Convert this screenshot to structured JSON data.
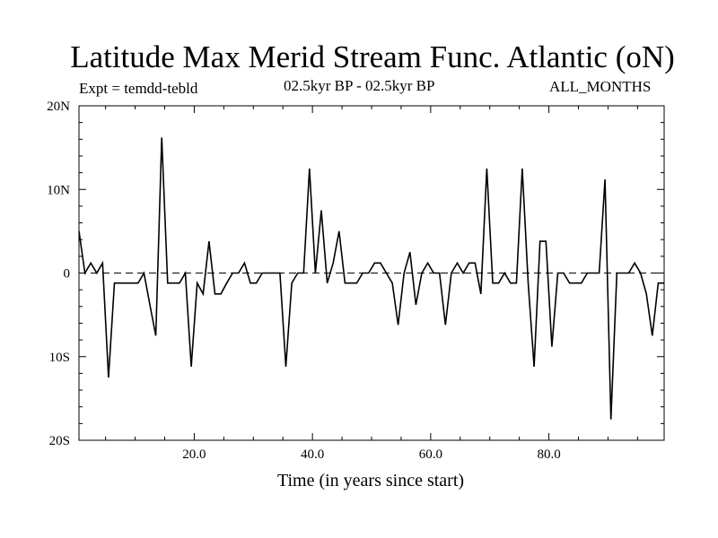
{
  "header": {
    "title": "Latitude Max Merid Stream Func. Atlantic (oN)",
    "left": "Expt = temdd-tebld",
    "center": "02.5kyr BP - 02.5kyr BP",
    "right": "ALL_MONTHS"
  },
  "chart_data": {
    "type": "line",
    "title": "Latitude Max Merid Stream Func. Atlantic (oN)",
    "xlabel": "Time (in years since start)",
    "ylabel": "",
    "xlim": [
      0.5,
      99.5
    ],
    "ylim": [
      -20,
      20
    ],
    "xticks": [
      20,
      40,
      60,
      80
    ],
    "xtick_labels": [
      "20.0",
      "40.0",
      "60.0",
      "80.0"
    ],
    "yticks": [
      20,
      10,
      0,
      -10,
      -20
    ],
    "ytick_labels": [
      "20N",
      "10N",
      "0",
      "10S",
      "20S"
    ],
    "zero_line": "dashed",
    "grid": false,
    "line_color": "#000000",
    "series": [
      {
        "x": [
          0.5,
          1.5,
          2.5,
          3.5,
          4.5,
          5.5,
          6.5,
          7.5,
          8.5,
          9.5,
          10.5,
          11.5,
          12.5,
          13.5,
          14.5,
          15.5,
          16.5,
          17.5,
          18.5,
          19.5,
          20.5,
          21.5,
          22.5,
          23.5,
          24.5,
          25.5,
          26.5,
          27.5,
          28.5,
          29.5,
          30.5,
          31.5,
          32.5,
          33.5,
          34.5,
          35.5,
          36.5,
          37.5,
          38.5,
          39.5,
          40.5,
          41.5,
          42.5,
          43.5,
          44.5,
          45.5,
          46.5,
          47.5,
          48.5,
          49.5,
          50.5,
          51.5,
          52.5,
          53.5,
          54.5,
          55.5,
          56.5,
          57.5,
          58.5,
          59.5,
          60.5,
          61.5,
          62.5,
          63.5,
          64.5,
          65.5,
          66.5,
          67.5,
          68.5,
          69.5,
          70.5,
          71.5,
          72.5,
          73.5,
          74.5,
          75.5,
          76.5,
          77.5,
          78.5,
          79.5,
          80.5,
          81.5,
          82.5,
          83.5,
          84.5,
          85.5,
          86.5,
          87.5,
          88.5,
          89.5,
          90.5,
          91.5,
          92.5,
          93.5,
          94.5,
          95.5,
          96.5,
          97.5,
          98.5,
          99.5
        ],
        "values": [
          5.0,
          0.0,
          1.2,
          0.0,
          1.2,
          -12.5,
          -1.2,
          -1.2,
          -1.2,
          -1.2,
          -1.2,
          0.0,
          -3.8,
          -7.5,
          16.2,
          -1.2,
          -1.2,
          -1.2,
          0.0,
          -11.2,
          -1.2,
          -2.5,
          3.8,
          -2.5,
          -2.5,
          -1.2,
          0.0,
          0.0,
          1.2,
          -1.2,
          -1.2,
          0.0,
          0.0,
          0.0,
          0.0,
          -11.2,
          -1.2,
          0.0,
          0.0,
          12.5,
          0.0,
          7.5,
          -1.2,
          1.2,
          5.0,
          -1.2,
          -1.2,
          -1.2,
          0.0,
          0.0,
          1.2,
          1.2,
          0.0,
          -1.2,
          -6.2,
          0.0,
          2.5,
          -3.8,
          0.0,
          1.2,
          0.0,
          0.0,
          -6.2,
          0.0,
          1.2,
          0.0,
          1.2,
          1.2,
          -2.5,
          12.5,
          -1.2,
          -1.2,
          0.0,
          -1.2,
          -1.2,
          12.5,
          -1.2,
          -11.2,
          3.8,
          3.8,
          -8.8,
          0.0,
          0.0,
          -1.2,
          -1.2,
          -1.2,
          0.0,
          0.0,
          0.0,
          11.2,
          -17.5,
          0.0,
          0.0,
          0.0,
          1.2,
          0.0,
          -2.5,
          -7.5,
          -1.2,
          -1.2
        ]
      }
    ]
  }
}
